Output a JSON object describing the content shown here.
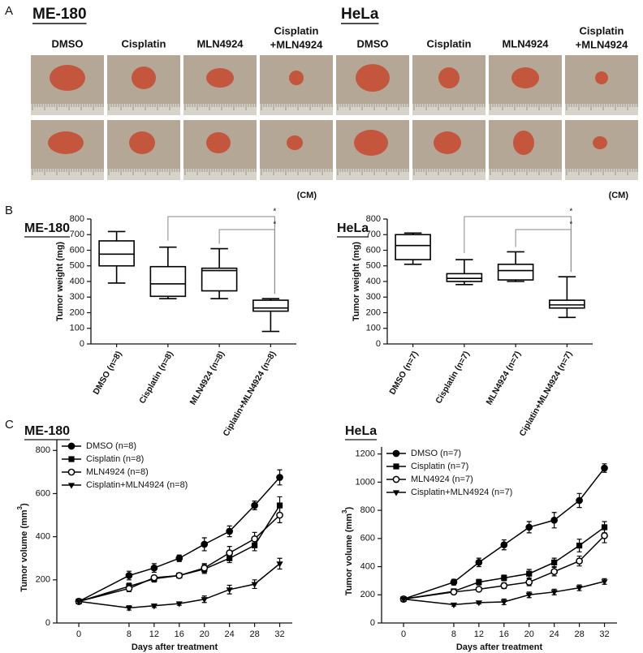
{
  "panel_labels": [
    "A",
    "B",
    "C"
  ],
  "panel_a": {
    "groups": [
      {
        "title": "ME-180",
        "columns": [
          [
            "DMSO"
          ],
          [
            "Cisplatin"
          ],
          [
            "MLN4924"
          ],
          [
            "Cisplatin",
            "+MLN4924"
          ]
        ],
        "unit": "(CM)"
      },
      {
        "title": "HeLa",
        "columns": [
          [
            "DMSO"
          ],
          [
            "Cisplatin"
          ],
          [
            "MLN4924"
          ],
          [
            "Cisplatin",
            "+MLN4924"
          ]
        ],
        "unit": "(CM)"
      }
    ]
  },
  "chart_data": [
    {
      "type": "box",
      "title": "ME-180",
      "ylabel": "Tumor weight (mg)",
      "categories": [
        "DMSO (n=8)",
        "Cisplatin (n=8)",
        "MLN4924 (n=8)",
        "Ciplatin+MLN4924 (n=8)"
      ],
      "min": [
        390,
        290,
        290,
        80
      ],
      "q1": [
        500,
        305,
        340,
        210
      ],
      "median": [
        575,
        385,
        470,
        230
      ],
      "q3": [
        660,
        495,
        485,
        280
      ],
      "max": [
        720,
        620,
        610,
        290
      ],
      "ylim": [
        0,
        800
      ],
      "yticks": [
        0,
        100,
        200,
        300,
        400,
        500,
        600,
        700,
        800
      ],
      "annotations": [
        "*",
        "*"
      ],
      "color": "#000000"
    },
    {
      "type": "box",
      "title": "HeLa",
      "ylabel": "Tumor weight (mg)",
      "categories": [
        "DMSO (n=7)",
        "Cisplatin (n=7)",
        "MLN4924 (n=7)",
        "Ciplatin+MLN4924 (n=7)"
      ],
      "min": [
        510,
        380,
        400,
        170
      ],
      "q1": [
        540,
        400,
        410,
        230
      ],
      "median": [
        630,
        420,
        470,
        250
      ],
      "q3": [
        700,
        450,
        510,
        280
      ],
      "max": [
        710,
        540,
        590,
        430
      ],
      "ylim": [
        0,
        800
      ],
      "yticks": [
        0,
        100,
        200,
        300,
        400,
        500,
        600,
        700,
        800
      ],
      "annotations": [
        "*",
        "*"
      ],
      "color": "#000000"
    },
    {
      "type": "line",
      "title": "ME-180",
      "ylabel": "Tumor volume (mm",
      "ylabel_sup": "3",
      "ylabel_end": ")",
      "xlabel": "Days after treatment",
      "x": [
        0,
        8,
        12,
        16,
        20,
        24,
        28,
        32
      ],
      "series": [
        {
          "name": "DMSO (n=8)",
          "marker": "circle",
          "color": "#000000",
          "values": [
            100,
            220,
            255,
            300,
            365,
            425,
            545,
            675
          ],
          "errors": [
            0,
            20,
            20,
            15,
            30,
            25,
            20,
            35
          ]
        },
        {
          "name": "Cisplatin (n=8)",
          "marker": "square",
          "color": "#000000",
          "values": [
            100,
            170,
            205,
            220,
            250,
            300,
            360,
            545
          ],
          "errors": [
            0,
            15,
            15,
            10,
            20,
            20,
            25,
            40
          ]
        },
        {
          "name": "MLN4924 (n=8)",
          "marker": "open-circle",
          "color": "#000000",
          "values": [
            100,
            160,
            210,
            220,
            255,
            325,
            390,
            500
          ],
          "errors": [
            0,
            15,
            10,
            10,
            20,
            30,
            30,
            35
          ]
        },
        {
          "name": "Cisplatin+MLN4924 (n=8)",
          "marker": "triangle-down",
          "color": "#000000",
          "values": [
            100,
            70,
            80,
            90,
            110,
            155,
            180,
            275
          ],
          "errors": [
            0,
            10,
            8,
            8,
            15,
            20,
            20,
            25
          ]
        }
      ],
      "xlim": [
        -3.5,
        34
      ],
      "xticks": [
        0,
        8,
        12,
        16,
        20,
        24,
        28,
        32
      ],
      "ylim": [
        0,
        850
      ],
      "yticks": [
        0,
        200,
        400,
        600,
        800
      ]
    },
    {
      "type": "line",
      "title": "HeLa",
      "ylabel": "Tumor volume (mm",
      "ylabel_sup": "3",
      "ylabel_end": ")",
      "xlabel": "Days after treatment",
      "x": [
        0,
        8,
        12,
        16,
        20,
        24,
        28,
        32
      ],
      "series": [
        {
          "name": "DMSO (n=7)",
          "marker": "circle",
          "color": "#000000",
          "values": [
            170,
            290,
            430,
            555,
            680,
            730,
            870,
            1100
          ],
          "errors": [
            0,
            20,
            30,
            35,
            40,
            55,
            50,
            30
          ]
        },
        {
          "name": "Cisplatin (n=7)",
          "marker": "square",
          "color": "#000000",
          "values": [
            170,
            225,
            290,
            320,
            350,
            430,
            550,
            680
          ],
          "errors": [
            0,
            15,
            20,
            20,
            30,
            30,
            45,
            40
          ]
        },
        {
          "name": "MLN4924 (n=7)",
          "marker": "open-circle",
          "color": "#000000",
          "values": [
            170,
            220,
            240,
            265,
            290,
            365,
            440,
            620
          ],
          "errors": [
            0,
            10,
            15,
            20,
            25,
            30,
            35,
            50
          ]
        },
        {
          "name": "Cisplatin+MLN4924 (n=7)",
          "marker": "triangle-down",
          "color": "#000000",
          "values": [
            170,
            130,
            145,
            150,
            200,
            220,
            250,
            295
          ],
          "errors": [
            0,
            10,
            10,
            20,
            20,
            20,
            20,
            20
          ]
        }
      ],
      "xlim": [
        -3.5,
        34
      ],
      "xticks": [
        0,
        8,
        12,
        16,
        20,
        24,
        28,
        32
      ],
      "ylim": [
        0,
        1250
      ],
      "yticks": [
        0,
        200,
        400,
        600,
        800,
        1000,
        1200
      ]
    }
  ]
}
